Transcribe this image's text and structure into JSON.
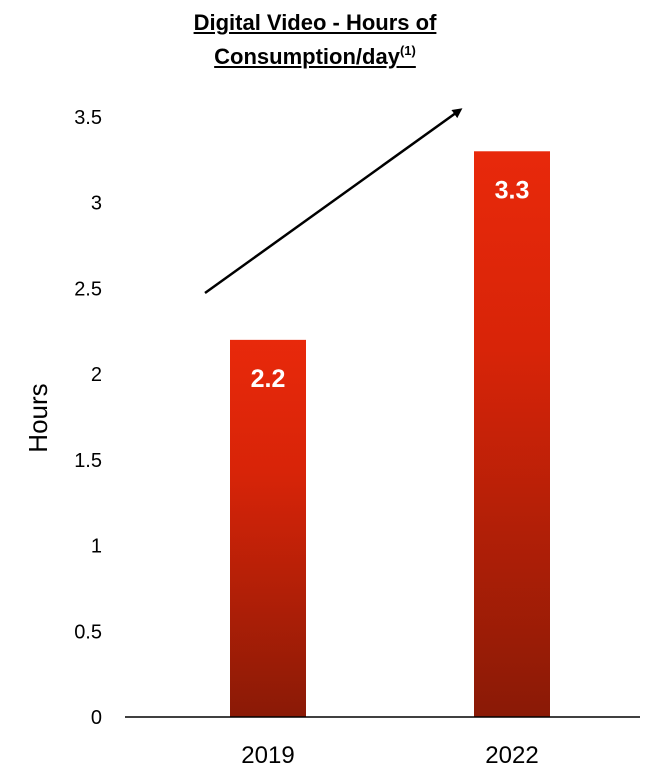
{
  "chart_data": {
    "type": "bar",
    "title": "Digital Video - Hours of Consumption/day",
    "title_line1": "Digital Video - Hours of",
    "title_line2": "Consumption/day",
    "title_superscript": "(1)",
    "xlabel": "",
    "ylabel": "Hours",
    "categories": [
      "2019",
      "2022"
    ],
    "values": [
      2.2,
      3.3
    ],
    "data_labels": [
      "2.2",
      "3.3"
    ],
    "ylim": [
      0,
      3.5
    ],
    "yticks": [
      0,
      0.5,
      1,
      1.5,
      2,
      2.5,
      3,
      3.5
    ],
    "ytick_labels": [
      "0",
      "0.5",
      "1",
      "1.5",
      "2",
      "2.5",
      "3",
      "3.5"
    ],
    "grid": false,
    "legend": "none",
    "trend_arrow": "upward from 2019 to 2022",
    "colors": {
      "bar_top": "#e8290b",
      "bar_bottom": "#8a1a06",
      "data_label": "#ffffff",
      "axis": "#000000",
      "text": "#000000"
    }
  }
}
